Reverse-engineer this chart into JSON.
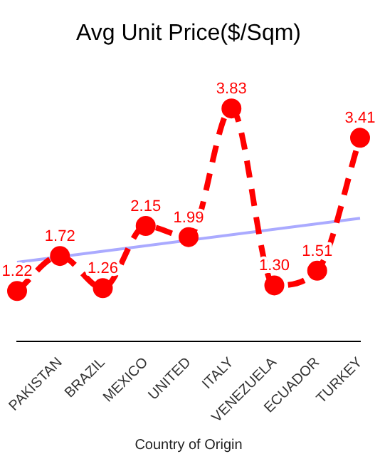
{
  "chart_data": {
    "type": "line",
    "title": "Avg Unit Price($/Sqm)",
    "xlabel": "Country of Origin",
    "categories": [
      null,
      "PAKISTAN",
      "BRAZIL",
      "MEXICO",
      "UNITED",
      "ITALY",
      "VENEZUELA",
      "ECUADOR",
      "TURKEY"
    ],
    "series": [
      {
        "color": "#ff0000",
        "values": [
          1.22,
          1.72,
          1.26,
          2.15,
          1.99,
          3.83,
          1.3,
          1.51,
          3.41
        ],
        "value_labels": [
          "1.22",
          "1.72",
          "1.26",
          "2.15",
          "1.99",
          "3.83",
          "1.30",
          "1.51",
          "3.41"
        ],
        "line_style": "dashed",
        "marker": "circle"
      },
      {
        "type": "line",
        "color": "#aaaaff",
        "values": [
          1.63,
          null,
          null,
          null,
          null,
          null,
          null,
          null,
          2.26
        ],
        "line_style": "solid",
        "marker": "none"
      }
    ],
    "grid": false,
    "legend": false,
    "tick_labels": "x"
  }
}
